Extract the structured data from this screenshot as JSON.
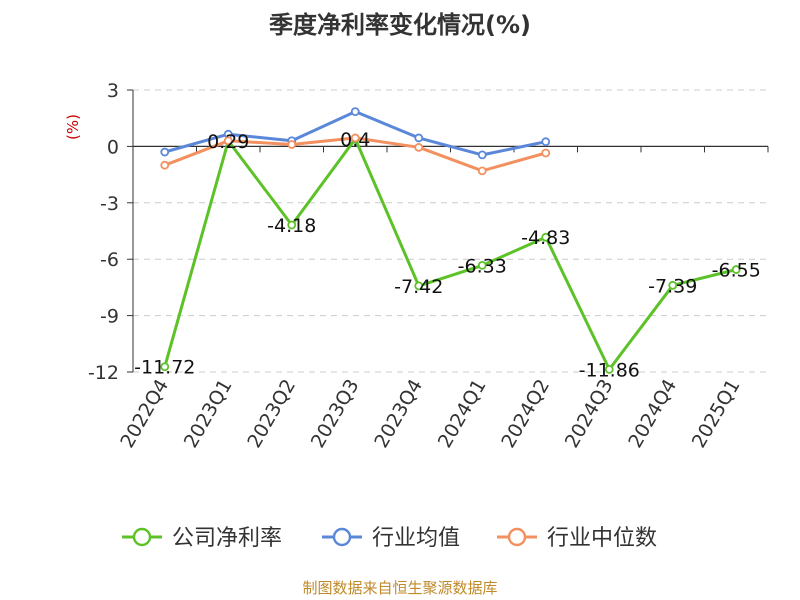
{
  "chart_data": {
    "type": "line",
    "title": "季度净利率变化情况(%)",
    "ylabel": "(%)",
    "xlabel": "",
    "categories": [
      "2022Q4",
      "2023Q1",
      "2023Q2",
      "2023Q3",
      "2023Q4",
      "2024Q1",
      "2024Q2",
      "2024Q3",
      "2024Q4",
      "2025Q1"
    ],
    "ylim": [
      -12,
      3
    ],
    "yticks": [
      3,
      0,
      -3,
      -6,
      -9,
      -12
    ],
    "grid": true,
    "legend_position": "bottom",
    "series": [
      {
        "name": "公司净利率",
        "color": "#5cc228",
        "values": [
          -11.72,
          0.29,
          -4.18,
          0.4,
          -7.42,
          -6.33,
          -4.83,
          -11.86,
          -7.39,
          -6.55
        ],
        "labels": [
          "-11.72",
          "0.29",
          "-4.18",
          "0.4",
          "-7.42",
          "-6.33",
          "-4.83",
          "-11.86",
          "-7.39",
          "-6.55"
        ]
      },
      {
        "name": "行业均值",
        "color": "#5b87d9",
        "values": [
          -0.3,
          0.65,
          0.3,
          1.85,
          0.45,
          -0.45,
          0.25,
          null,
          null,
          null
        ]
      },
      {
        "name": "行业中位数",
        "color": "#f39060",
        "values": [
          -1.0,
          0.3,
          0.1,
          0.45,
          -0.05,
          -1.3,
          -0.35,
          null,
          null,
          null
        ]
      }
    ]
  },
  "footer": {
    "source": "制图数据来自恒生聚源数据库"
  }
}
